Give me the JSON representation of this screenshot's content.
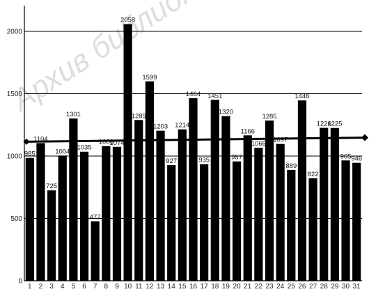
{
  "chart_data": {
    "type": "bar",
    "title": "",
    "xlabel": "",
    "ylabel": "",
    "ylim": [
      0,
      2200
    ],
    "y_ticks": [
      0,
      500,
      1000,
      1500,
      2000
    ],
    "grid": "horizontal",
    "categories": [
      "1",
      "2",
      "3",
      "4",
      "5",
      "6",
      "7",
      "8",
      "9",
      "10",
      "11",
      "12",
      "13",
      "14",
      "15",
      "16",
      "17",
      "18",
      "19",
      "20",
      "21",
      "22",
      "23",
      "24",
      "25",
      "26",
      "27",
      "28",
      "29",
      "30",
      "31"
    ],
    "values": [
      985,
      1104,
      725,
      1004,
      1301,
      1035,
      477,
      1080,
      1074,
      2058,
      1289,
      1599,
      1203,
      927,
      1214,
      1464,
      935,
      1451,
      1320,
      957,
      1166,
      1066,
      1285,
      1097,
      889,
      1446,
      822,
      1226,
      1225,
      965,
      946
    ],
    "value_labels": [
      "985",
      "1104",
      "725",
      "1004",
      "1301",
      "1035",
      "477",
      "1080",
      "1074",
      "2058",
      "1289",
      "1599",
      "1203",
      "927",
      "1214",
      "1464",
      "935",
      "1451",
      "1320",
      "957",
      "1166",
      "1066",
      "1285",
      "1097",
      "889",
      "1446",
      "822",
      "1226",
      "1225",
      "965",
      "946"
    ],
    "trend_line": {
      "start_value": 1115,
      "end_value": 1148
    },
    "bar_color": "#000000",
    "grid_color": "#000000",
    "watermark": "Архив библиотеки"
  }
}
